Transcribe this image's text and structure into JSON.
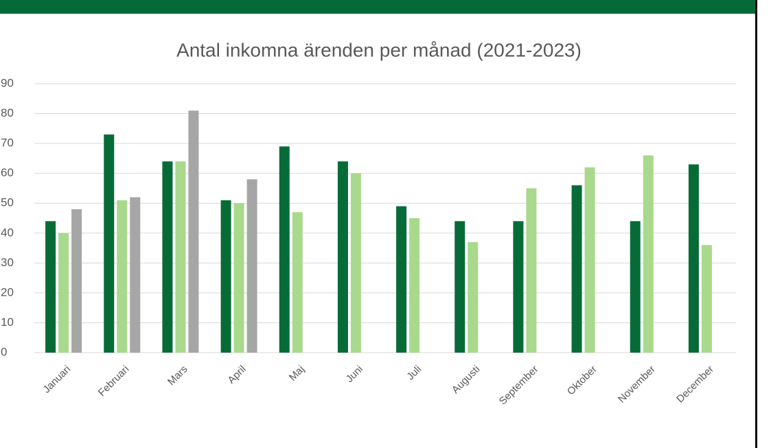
{
  "chart_data": {
    "type": "bar",
    "title": "Antal inkomna ärenden per månad (2021-2023)",
    "categories": [
      "Januari",
      "Februari",
      "Mars",
      "April",
      "Maj",
      "Juni",
      "Juli",
      "Augusti",
      "September",
      "Oktober",
      "November",
      "December"
    ],
    "series": [
      {
        "color": "#076b38",
        "values": [
          44,
          73,
          64,
          51,
          69,
          64,
          49,
          44,
          44,
          56,
          44,
          63
        ]
      },
      {
        "color": "#a9d98c",
        "values": [
          40,
          51,
          64,
          50,
          47,
          60,
          45,
          37,
          55,
          62,
          66,
          36
        ]
      },
      {
        "color": "#a6a6a6",
        "values": [
          48,
          52,
          81,
          58,
          null,
          null,
          null,
          null,
          null,
          null,
          null,
          null
        ]
      }
    ],
    "ylim": [
      0,
      90
    ],
    "yticks": [
      0,
      10,
      20,
      30,
      40,
      50,
      60,
      70,
      80,
      90
    ],
    "grid": true
  }
}
